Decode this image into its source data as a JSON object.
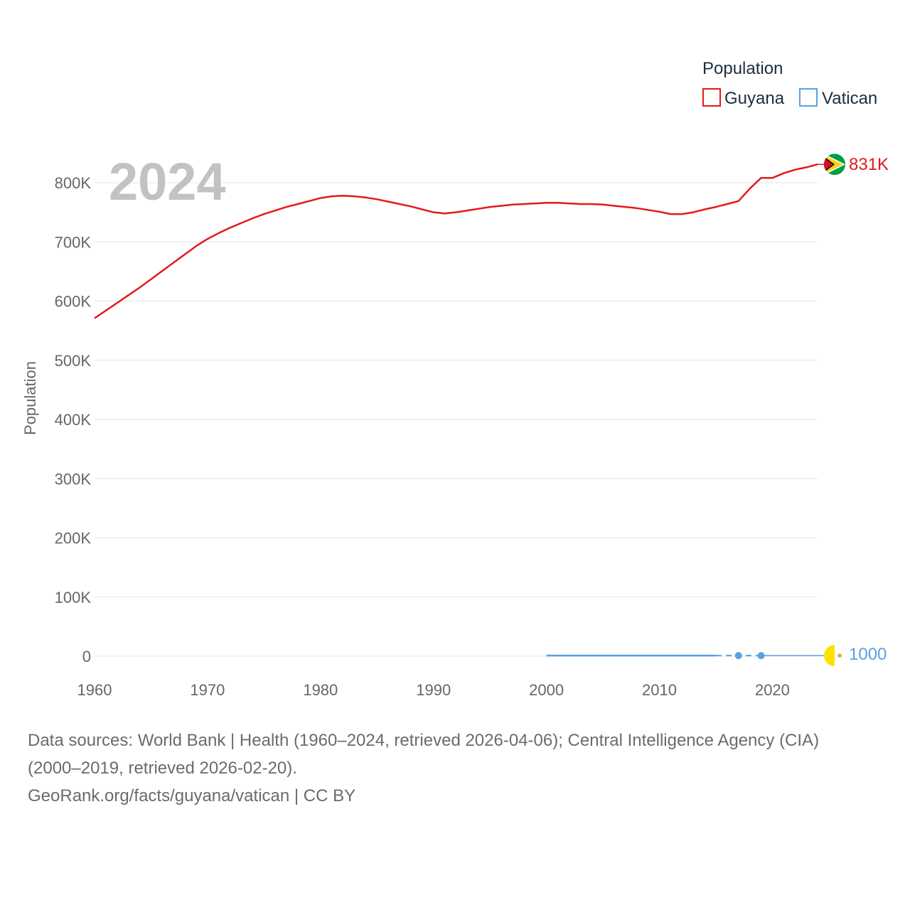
{
  "chart_data": {
    "type": "line",
    "year_label": "2024",
    "ylabel": "Population",
    "legend": {
      "title": "Population",
      "position": "top-right"
    },
    "xlim": [
      1960,
      2025
    ],
    "ylim": [
      0,
      800000
    ],
    "x_ticks": [
      {
        "value": 1960,
        "label": "1960"
      },
      {
        "value": 1970,
        "label": "1970"
      },
      {
        "value": 1980,
        "label": "1980"
      },
      {
        "value": 1990,
        "label": "1990"
      },
      {
        "value": 2000,
        "label": "2000"
      },
      {
        "value": 2010,
        "label": "2010"
      },
      {
        "value": 2020,
        "label": "2020"
      }
    ],
    "y_ticks": [
      {
        "value": 0,
        "label": "0"
      },
      {
        "value": 100000,
        "label": "100K"
      },
      {
        "value": 200000,
        "label": "200K"
      },
      {
        "value": 300000,
        "label": "300K"
      },
      {
        "value": 400000,
        "label": "400K"
      },
      {
        "value": 500000,
        "label": "500K"
      },
      {
        "value": 600000,
        "label": "600K"
      },
      {
        "value": 700000,
        "label": "700K"
      },
      {
        "value": 800000,
        "label": "800K"
      }
    ],
    "series": [
      {
        "name": "Guyana",
        "color": "#e31a1c",
        "end_label": "831K",
        "flag": "guyana-flag-icon",
        "x": [
          1960,
          1961,
          1962,
          1963,
          1964,
          1965,
          1966,
          1967,
          1968,
          1969,
          1970,
          1971,
          1972,
          1973,
          1974,
          1975,
          1976,
          1977,
          1978,
          1979,
          1980,
          1981,
          1982,
          1983,
          1984,
          1985,
          1986,
          1987,
          1988,
          1989,
          1990,
          1991,
          1992,
          1993,
          1994,
          1995,
          1996,
          1997,
          1998,
          1999,
          2000,
          2001,
          2002,
          2003,
          2004,
          2005,
          2006,
          2007,
          2008,
          2009,
          2010,
          2011,
          2012,
          2013,
          2014,
          2015,
          2016,
          2017,
          2018,
          2019,
          2020,
          2021,
          2022,
          2023,
          2024
        ],
        "values": [
          571000,
          584000,
          597000,
          610000,
          623000,
          637000,
          651000,
          665000,
          679000,
          693000,
          705000,
          715000,
          724000,
          732000,
          740000,
          747000,
          753000,
          759000,
          764000,
          769000,
          774000,
          777000,
          778000,
          777000,
          775000,
          772000,
          768000,
          764000,
          760000,
          755000,
          750000,
          748000,
          750000,
          753000,
          756000,
          759000,
          761000,
          763000,
          764000,
          765000,
          766000,
          766000,
          765000,
          764000,
          764000,
          763000,
          761000,
          759000,
          757000,
          754000,
          751000,
          747000,
          747000,
          750000,
          755000,
          759000,
          764000,
          769000,
          790000,
          808000,
          808000,
          816000,
          822000,
          826000,
          831000
        ]
      },
      {
        "name": "Vatican",
        "color": "#5aa0e6",
        "end_label": "1000",
        "flag": "vatican-flag-icon",
        "segments": [
          {
            "style": "solid",
            "x": [
              2000,
              2015
            ],
            "values": [
              1000,
              1000
            ]
          },
          {
            "style": "dashed",
            "x": [
              2015,
              2017,
              2019
            ],
            "values": [
              1000,
              1000,
              1000
            ]
          },
          {
            "style": "thin",
            "x": [
              2019,
              2025
            ],
            "values": [
              1000,
              1000
            ]
          }
        ],
        "points": [
          {
            "x": 2017,
            "value": 1000
          },
          {
            "x": 2019,
            "value": 1000
          }
        ]
      }
    ]
  },
  "sources": {
    "line1": "Data sources: World Bank | Health (1960–2024, retrieved 2026-04-06); Central Intelligence Agency (CIA)",
    "line2": "(2000–2019, retrieved 2026-02-20).",
    "line3": "GeoRank.org/facts/guyana/vatican | CC BY"
  }
}
